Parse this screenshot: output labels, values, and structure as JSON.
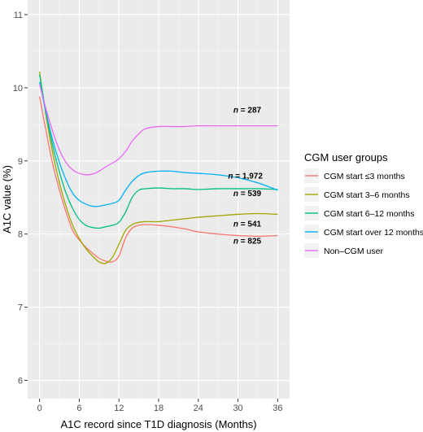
{
  "chart_data": {
    "type": "line",
    "xlabel": "A1C record since T1D diagnosis (Months)",
    "ylabel": "A1C value (%)",
    "xlim": [
      -1.8,
      37.8
    ],
    "ylim": [
      5.75,
      11.2
    ],
    "xticks": [
      0,
      6,
      12,
      18,
      24,
      30,
      36
    ],
    "yticks": [
      6,
      7,
      8,
      9,
      10,
      11
    ],
    "grid": true,
    "legend": {
      "title": "CGM user groups",
      "placement": "right"
    },
    "series": [
      {
        "name": "CGM start ≤3 months",
        "color": "#F8766D",
        "n_label": "= 825",
        "n_label_pos": [
          29.3,
          7.87
        ],
        "x": [
          0,
          1,
          2,
          3,
          4,
          5,
          6,
          7,
          8,
          9,
          10,
          11,
          12,
          13,
          14,
          15,
          16,
          18,
          20,
          22,
          24,
          27,
          30,
          33,
          36
        ],
        "y": [
          9.88,
          9.4,
          8.95,
          8.6,
          8.3,
          8.05,
          7.92,
          7.82,
          7.74,
          7.67,
          7.63,
          7.62,
          7.7,
          7.95,
          8.08,
          8.12,
          8.13,
          8.12,
          8.1,
          8.07,
          8.03,
          8.0,
          7.98,
          7.97,
          7.98
        ]
      },
      {
        "name": "CGM start 3–6 months",
        "color": "#A3A500",
        "n_label": "= 541",
        "n_label_pos": [
          29.3,
          8.1
        ],
        "x": [
          0,
          1,
          2,
          3,
          4,
          5,
          6,
          7,
          8,
          9,
          10,
          11,
          12,
          13,
          14,
          15,
          16,
          18,
          20,
          22,
          24,
          27,
          30,
          33,
          36
        ],
        "y": [
          10.22,
          9.6,
          9.1,
          8.7,
          8.38,
          8.12,
          7.94,
          7.8,
          7.7,
          7.62,
          7.6,
          7.68,
          7.86,
          8.05,
          8.13,
          8.16,
          8.17,
          8.17,
          8.19,
          8.21,
          8.23,
          8.25,
          8.27,
          8.28,
          8.27
        ]
      },
      {
        "name": "CGM start 6–12 months",
        "color": "#00BF7D",
        "n_label": "= 539",
        "n_label_pos": [
          29.3,
          8.52
        ],
        "x": [
          0,
          1,
          2,
          3,
          4,
          5,
          6,
          7,
          8,
          9,
          10,
          11,
          12,
          13,
          14,
          15,
          16,
          18,
          20,
          22,
          24,
          27,
          30,
          33,
          36
        ],
        "y": [
          10.18,
          9.65,
          9.2,
          8.85,
          8.56,
          8.35,
          8.2,
          8.12,
          8.09,
          8.08,
          8.1,
          8.12,
          8.16,
          8.3,
          8.5,
          8.6,
          8.62,
          8.63,
          8.62,
          8.62,
          8.61,
          8.62,
          8.62,
          8.62,
          8.61
        ]
      },
      {
        "name": "CGM start over 12 months",
        "color": "#00B0F6",
        "n_label": "= 1,972",
        "n_label_pos": [
          28.5,
          8.76
        ],
        "x": [
          0,
          1,
          2,
          3,
          4,
          5,
          6,
          7,
          8,
          9,
          10,
          11,
          12,
          13,
          14,
          15,
          16,
          18,
          20,
          22,
          24,
          27,
          30,
          33,
          36
        ],
        "y": [
          10.08,
          9.65,
          9.28,
          8.98,
          8.74,
          8.56,
          8.46,
          8.41,
          8.38,
          8.38,
          8.4,
          8.42,
          8.46,
          8.6,
          8.72,
          8.8,
          8.84,
          8.86,
          8.86,
          8.84,
          8.83,
          8.81,
          8.77,
          8.7,
          8.6
        ]
      },
      {
        "name": "Non–CGM user",
        "color": "#E76BF3",
        "n_label": "= 287",
        "n_label_pos": [
          29.3,
          9.66
        ],
        "x": [
          0,
          1,
          2,
          3,
          4,
          5,
          6,
          7,
          8,
          9,
          10,
          11,
          12,
          13,
          14,
          15,
          16,
          18,
          20,
          22,
          24,
          27,
          30,
          33,
          36
        ],
        "y": [
          10.05,
          9.7,
          9.4,
          9.15,
          8.98,
          8.88,
          8.83,
          8.81,
          8.82,
          8.86,
          8.92,
          8.97,
          9.03,
          9.13,
          9.27,
          9.37,
          9.44,
          9.47,
          9.47,
          9.47,
          9.48,
          9.48,
          9.48,
          9.48,
          9.48
        ]
      }
    ]
  }
}
